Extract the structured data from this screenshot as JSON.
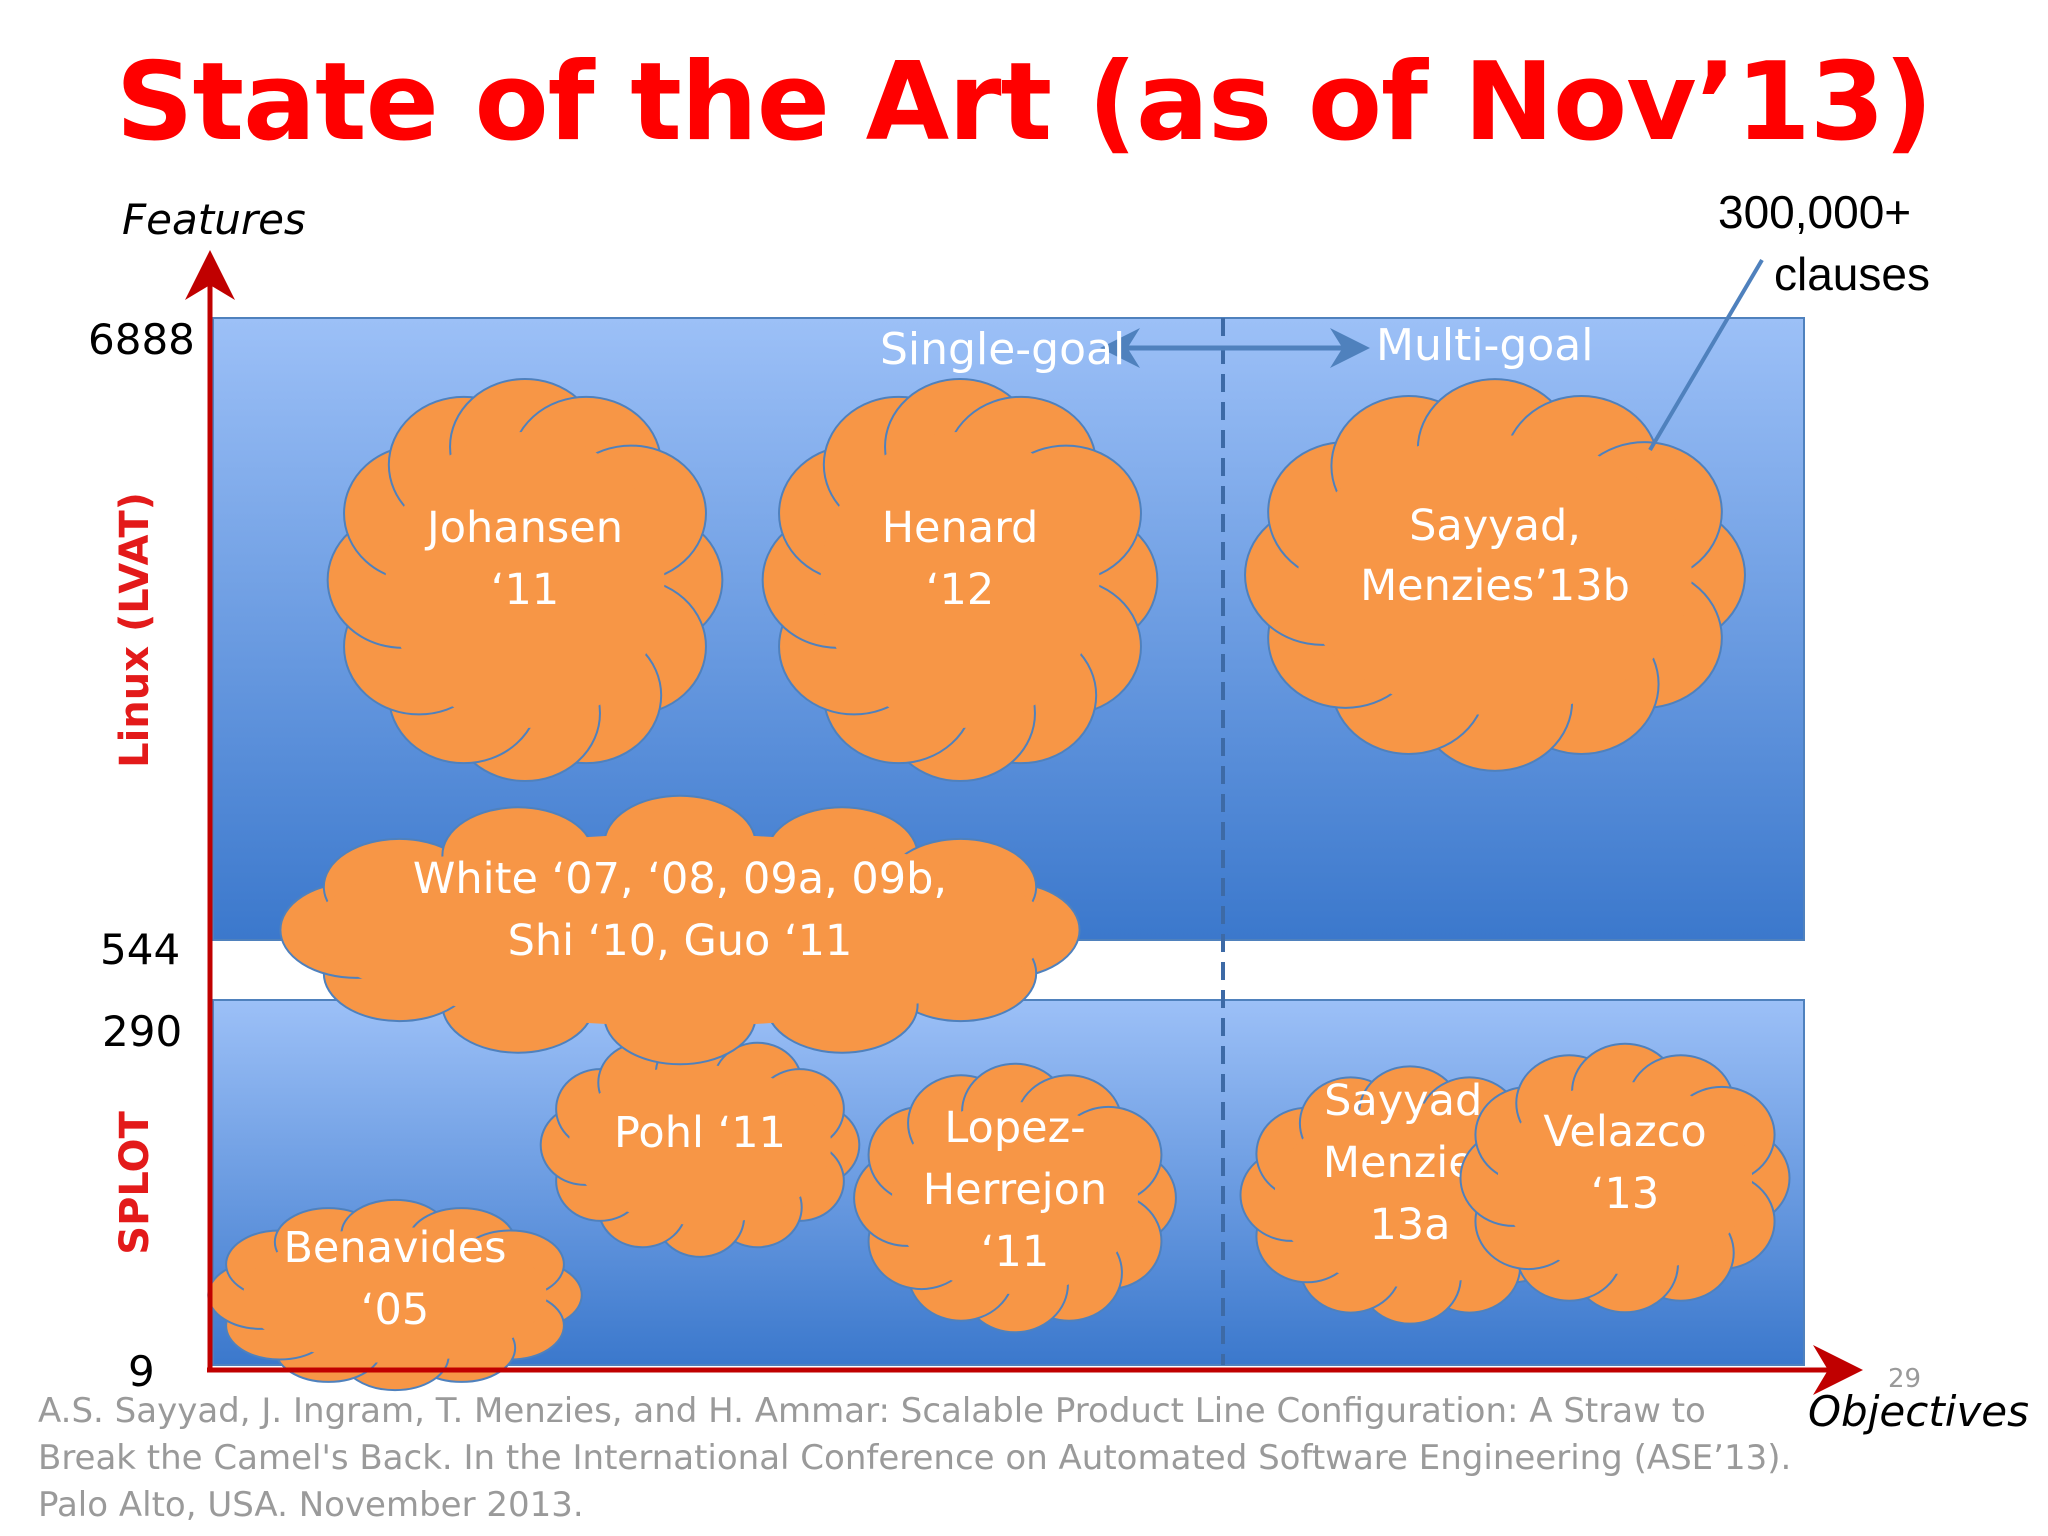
{
  "title": "State of the Art (as of Nov’13)",
  "y_axis": {
    "label": "Features",
    "ticks": [
      "6888",
      "544",
      "290",
      "9"
    ],
    "regions": [
      "Linux (LVAT)",
      "SPLOT"
    ]
  },
  "x_axis": {
    "label": "Objectives"
  },
  "top_labels": {
    "left": "Single-goal",
    "right": "Multi-goal"
  },
  "callout": {
    "line1": "300,000+",
    "line2": "clauses"
  },
  "clouds": [
    {
      "id": "johansen",
      "lines": [
        "Johansen",
        "‘11"
      ]
    },
    {
      "id": "henard",
      "lines": [
        "Henard",
        "‘12"
      ]
    },
    {
      "id": "sayyad-b",
      "lines": [
        "Sayyad,",
        "Menzies’13b"
      ]
    },
    {
      "id": "white",
      "lines": [
        "White ‘07, ‘08, 09a, 09b,",
        "Shi ‘10, Guo ‘11"
      ]
    },
    {
      "id": "pohl",
      "lines": [
        "Pohl ‘11"
      ]
    },
    {
      "id": "lopez",
      "lines": [
        "Lopez-",
        "Herrejon",
        "‘11"
      ]
    },
    {
      "id": "sayyad-a",
      "lines": [
        "Sayyad,",
        "Menzies",
        "13a"
      ]
    },
    {
      "id": "velazco",
      "lines": [
        "Velazco",
        "‘13"
      ]
    },
    {
      "id": "benavides",
      "lines": [
        "Benavides",
        "‘05"
      ]
    }
  ],
  "footer": "A.S. Sayyad, J. Ingram, T. Menzies, and H. Ammar: Scalable Product Line Configuration: A Straw to Break the Camel's Back. In the International Conference on Automated Software Engineering (ASE’13). Palo Alto, USA. November 2013.",
  "page_number": "29",
  "colors": {
    "title": "#ff0000",
    "region_label": "#e31a1a",
    "axis": "#c00000",
    "cloud_fill": "#f79646",
    "cloud_stroke": "#4f81bd",
    "panel_top": "#9cc0f7",
    "panel_bottom": "#3b78cc"
  }
}
